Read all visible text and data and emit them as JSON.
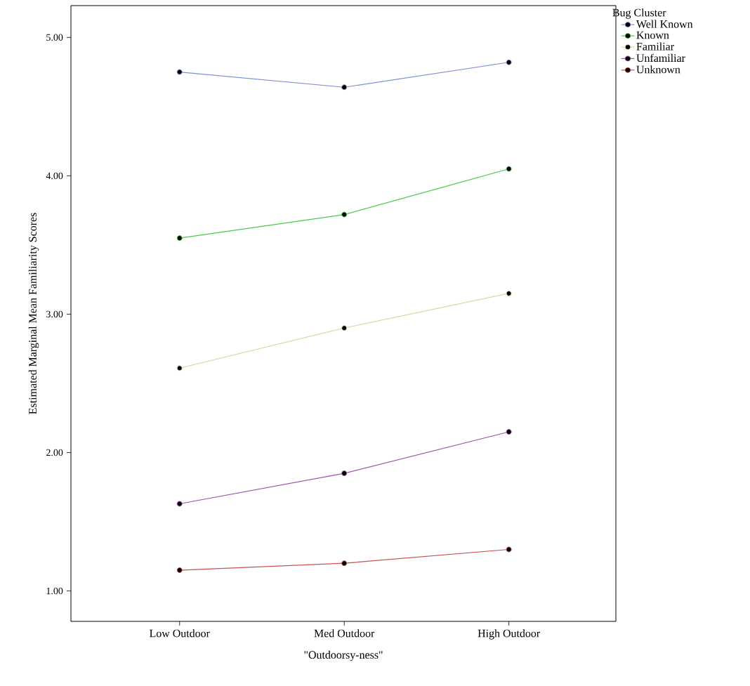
{
  "chart_data": {
    "type": "line",
    "xlabel": "\"Outdoorsy-ness\"",
    "ylabel": "Estimated Marginal Mean Familiarity Scores",
    "legend_title": "Bug Cluster",
    "categories": [
      "Low Outdoor",
      "Med Outdoor",
      "High Outdoor"
    ],
    "series": [
      {
        "name": "Well Known",
        "color": "#7b8ed6",
        "values": [
          4.75,
          4.64,
          4.82
        ]
      },
      {
        "name": "Known",
        "color": "#4cc94c",
        "values": [
          3.55,
          3.72,
          4.05
        ]
      },
      {
        "name": "Familiar",
        "color": "#e0d6a8",
        "values": [
          2.61,
          2.9,
          3.15
        ]
      },
      {
        "name": "Unfamiliar",
        "color": "#a050b0",
        "values": [
          1.63,
          1.85,
          2.15
        ]
      },
      {
        "name": "Unknown",
        "color": "#c85050",
        "values": [
          1.15,
          1.2,
          1.3
        ]
      }
    ],
    "ylim": [
      0.78,
      5.23
    ],
    "yticks": [
      {
        "value": 1,
        "label": "1.00"
      },
      {
        "value": 2,
        "label": "2.00"
      },
      {
        "value": 3,
        "label": "3.00"
      },
      {
        "value": 4,
        "label": "4.00"
      },
      {
        "value": 5,
        "label": "5.00"
      }
    ],
    "legend": "top right",
    "marker": "circle",
    "line_style": "solid"
  }
}
